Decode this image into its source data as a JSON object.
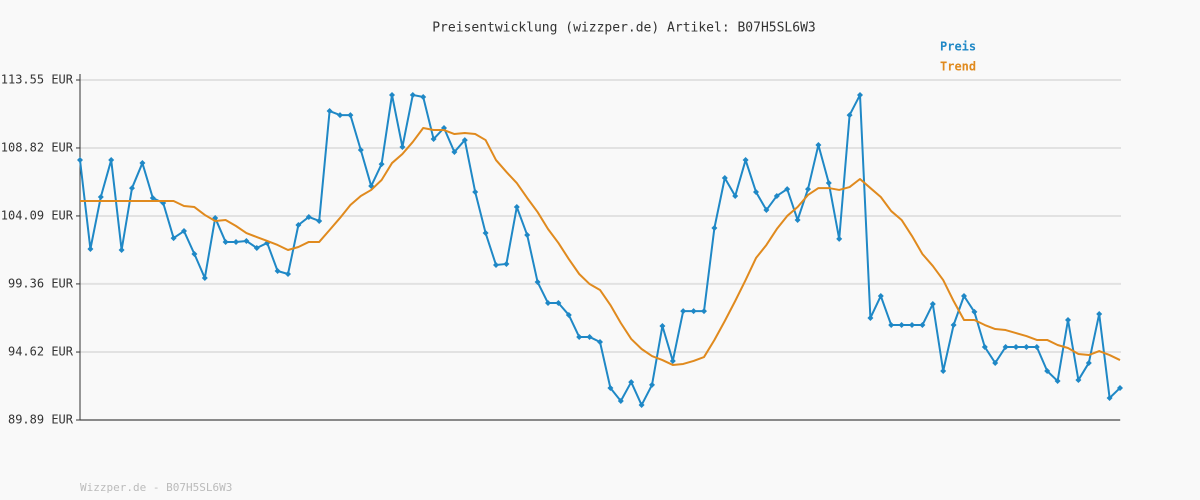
{
  "chart_data": {
    "type": "line",
    "title": "Preisentwicklung (wizzper.de) Artikel: B07H5SL6W3",
    "footer": "Wizzper.de - B07H5SL6W3",
    "grid": true,
    "legend": "top-right",
    "ylim": [
      89.89,
      113.55
    ],
    "yticks": [
      {
        "value": 89.89,
        "label": "89.89 EUR"
      },
      {
        "value": 94.62,
        "label": "94.62 EUR"
      },
      {
        "value": 99.36,
        "label": "99.36 EUR"
      },
      {
        "value": 104.09,
        "label": "104.09 EUR"
      },
      {
        "value": 108.82,
        "label": "108.82 EUR"
      },
      {
        "value": 113.55,
        "label": "113.55 EUR"
      }
    ],
    "series": [
      {
        "name": "Preis",
        "color": "#1f88c6",
        "markers": true,
        "values": [
          107.98,
          101.79,
          105.41,
          107.98,
          101.72,
          106.03,
          107.77,
          105.34,
          104.99,
          102.55,
          103.04,
          101.44,
          99.77,
          103.95,
          102.28,
          102.28,
          102.35,
          101.86,
          102.21,
          100.26,
          100.05,
          103.46,
          104.02,
          103.74,
          111.39,
          111.11,
          111.11,
          108.68,
          106.17,
          107.7,
          112.51,
          108.89,
          112.51,
          112.37,
          109.44,
          110.21,
          108.54,
          109.37,
          105.76,
          102.9,
          100.68,
          100.75,
          104.71,
          102.76,
          99.49,
          98.03,
          98.03,
          97.2,
          95.67,
          95.67,
          95.32,
          92.12,
          91.21,
          92.53,
          90.93,
          92.33,
          96.43,
          94.0,
          97.47,
          97.47,
          97.47,
          103.25,
          106.73,
          105.48,
          107.98,
          105.76,
          104.5,
          105.48,
          105.96,
          103.81,
          105.96,
          109.03,
          106.38,
          102.49,
          111.11,
          112.51,
          96.99,
          98.52,
          96.5,
          96.5,
          96.5,
          96.5,
          97.96,
          93.3,
          96.5,
          98.52,
          97.41,
          94.97,
          93.86,
          94.97,
          94.97,
          94.97,
          94.97,
          93.3,
          92.6,
          96.85,
          92.67,
          93.86,
          97.27,
          91.42,
          92.12
        ]
      },
      {
        "name": "Trend",
        "color": "#e08a1e",
        "markers": false,
        "values": [
          105.13,
          105.13,
          105.13,
          105.13,
          105.13,
          105.13,
          105.13,
          105.13,
          105.13,
          105.13,
          104.78,
          104.71,
          104.16,
          103.74,
          103.81,
          103.39,
          102.9,
          102.62,
          102.35,
          102.07,
          101.72,
          101.93,
          102.28,
          102.28,
          103.11,
          103.95,
          104.85,
          105.48,
          105.9,
          106.59,
          107.77,
          108.4,
          109.24,
          110.21,
          110.07,
          110.07,
          109.79,
          109.86,
          109.79,
          109.37,
          107.98,
          107.15,
          106.38,
          105.34,
          104.36,
          103.18,
          102.21,
          101.09,
          100.05,
          99.35,
          98.94,
          97.89,
          96.64,
          95.53,
          94.83,
          94.34,
          94.06,
          93.72,
          93.79,
          94.0,
          94.27,
          95.46,
          96.78,
          98.17,
          99.63,
          101.16,
          102.07,
          103.18,
          104.09,
          104.71,
          105.55,
          106.03,
          106.03,
          105.9,
          106.1,
          106.66,
          106.03,
          105.41,
          104.43,
          103.81,
          102.69,
          101.44,
          100.61,
          99.63,
          98.17,
          96.85,
          96.85,
          96.5,
          96.22,
          96.15,
          95.94,
          95.73,
          95.46,
          95.46,
          95.11,
          94.9,
          94.48,
          94.41,
          94.69,
          94.41,
          94.06
        ]
      }
    ]
  }
}
